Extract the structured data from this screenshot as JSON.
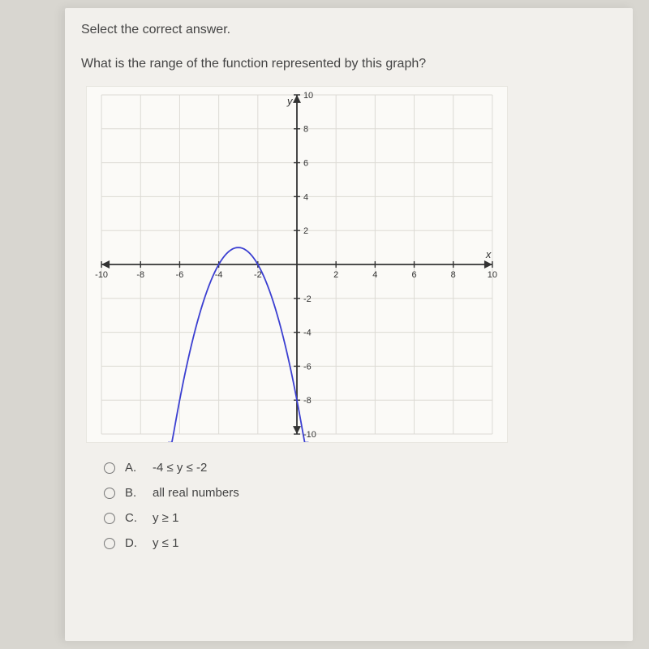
{
  "instruction": "Select the correct answer.",
  "question": "What is the range of the function represented by this graph?",
  "graph": {
    "type": "line",
    "background_color": "#fbfaf7",
    "grid_color": "#dcdad4",
    "axis_color": "#333333",
    "curve_color": "#3b3fd1",
    "xlim": [
      -10,
      10
    ],
    "ylim": [
      -10,
      10
    ],
    "xtick_step": 2,
    "ytick_step": 2,
    "xlabel": "x",
    "ylabel": "y",
    "tick_fontsize": 11,
    "tick_color": "#333333",
    "parabola": {
      "a": -1,
      "h": -3,
      "k": 1
    },
    "xticks_labels": [
      "-10",
      "-8",
      "-6",
      "-4",
      "-2",
      "2",
      "4",
      "6",
      "8",
      "10"
    ],
    "yticks_labels": [
      "-10",
      "-8",
      "-6",
      "-4",
      "-2",
      "2",
      "4",
      "6",
      "8",
      "10"
    ]
  },
  "options": [
    {
      "letter": "A.",
      "text": "-4 ≤ y ≤ -2"
    },
    {
      "letter": "B.",
      "text": "all real numbers"
    },
    {
      "letter": "C.",
      "text": "y ≥ 1"
    },
    {
      "letter": "D.",
      "text": "y ≤ 1"
    }
  ]
}
